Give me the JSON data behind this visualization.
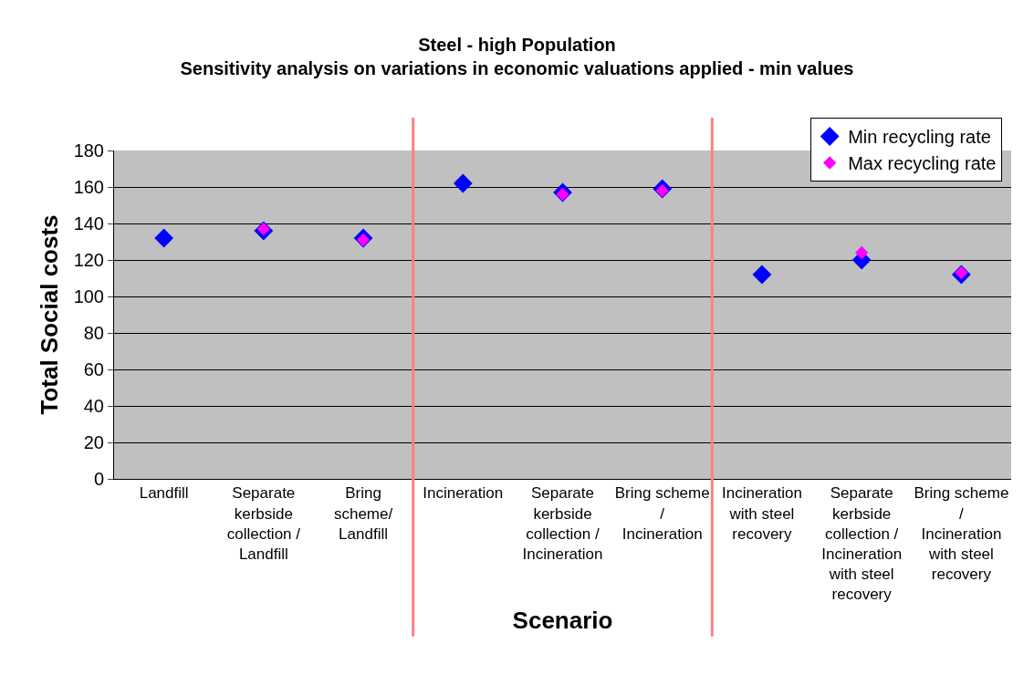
{
  "chart_data": {
    "type": "scatter",
    "title": "Steel - high Population\nSensitivity analysis on variations in economic valuations applied - min values",
    "xlabel": "Scenario",
    "ylabel": "Total Social costs",
    "categories": [
      "Landfill",
      "Separate kerbside collection / Landfill",
      "Bring scheme/ Landfill",
      "Incineration",
      "Separate kerbside collection / Incineration",
      "Bring scheme / Incineration",
      "Incineration with steel recovery",
      "Separate kerbside collection / Incineration with steel recovery",
      "Bring scheme / Incineration with steel recovery"
    ],
    "series": [
      {
        "name": "Min recycling rate",
        "color": "#0000ff",
        "values": [
          132,
          136,
          132,
          162,
          157,
          159,
          112,
          120,
          112
        ]
      },
      {
        "name": "Max recycling rate",
        "color": "#ff00ff",
        "values": [
          null,
          137,
          131,
          null,
          156,
          158,
          null,
          124,
          113
        ]
      }
    ],
    "ylim": [
      0,
      180
    ],
    "yticks": [
      0,
      20,
      40,
      60,
      80,
      100,
      120,
      140,
      160,
      180
    ],
    "grid": "y",
    "legend": "top right",
    "marker": "diamond"
  }
}
